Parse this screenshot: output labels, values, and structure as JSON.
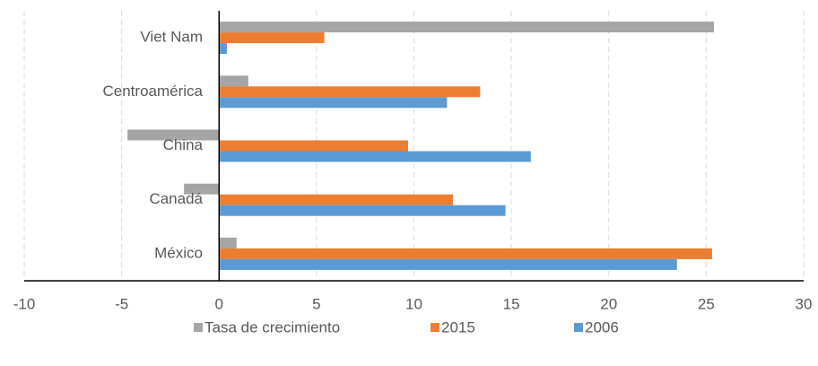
{
  "chart_data": {
    "type": "barh",
    "categories": [
      "Viet Nam",
      "Centroamérica",
      "China",
      "Canadá",
      "México"
    ],
    "series": [
      {
        "name": "Tasa de crecimiento",
        "color": "#a5a5a5",
        "values": [
          25.4,
          1.5,
          -4.7,
          -1.8,
          0.9
        ]
      },
      {
        "name": "2015",
        "color": "#ed7d31",
        "values": [
          5.4,
          13.4,
          9.7,
          12.0,
          25.3
        ]
      },
      {
        "name": "2006",
        "color": "#5b9bd5",
        "values": [
          0.4,
          11.7,
          16.0,
          14.7,
          23.5
        ]
      }
    ],
    "xlim": [
      -10,
      30
    ],
    "xticks": [
      -10,
      -5,
      0,
      5,
      10,
      15,
      20,
      25,
      30
    ],
    "grid": true,
    "legend": "bottom"
  }
}
